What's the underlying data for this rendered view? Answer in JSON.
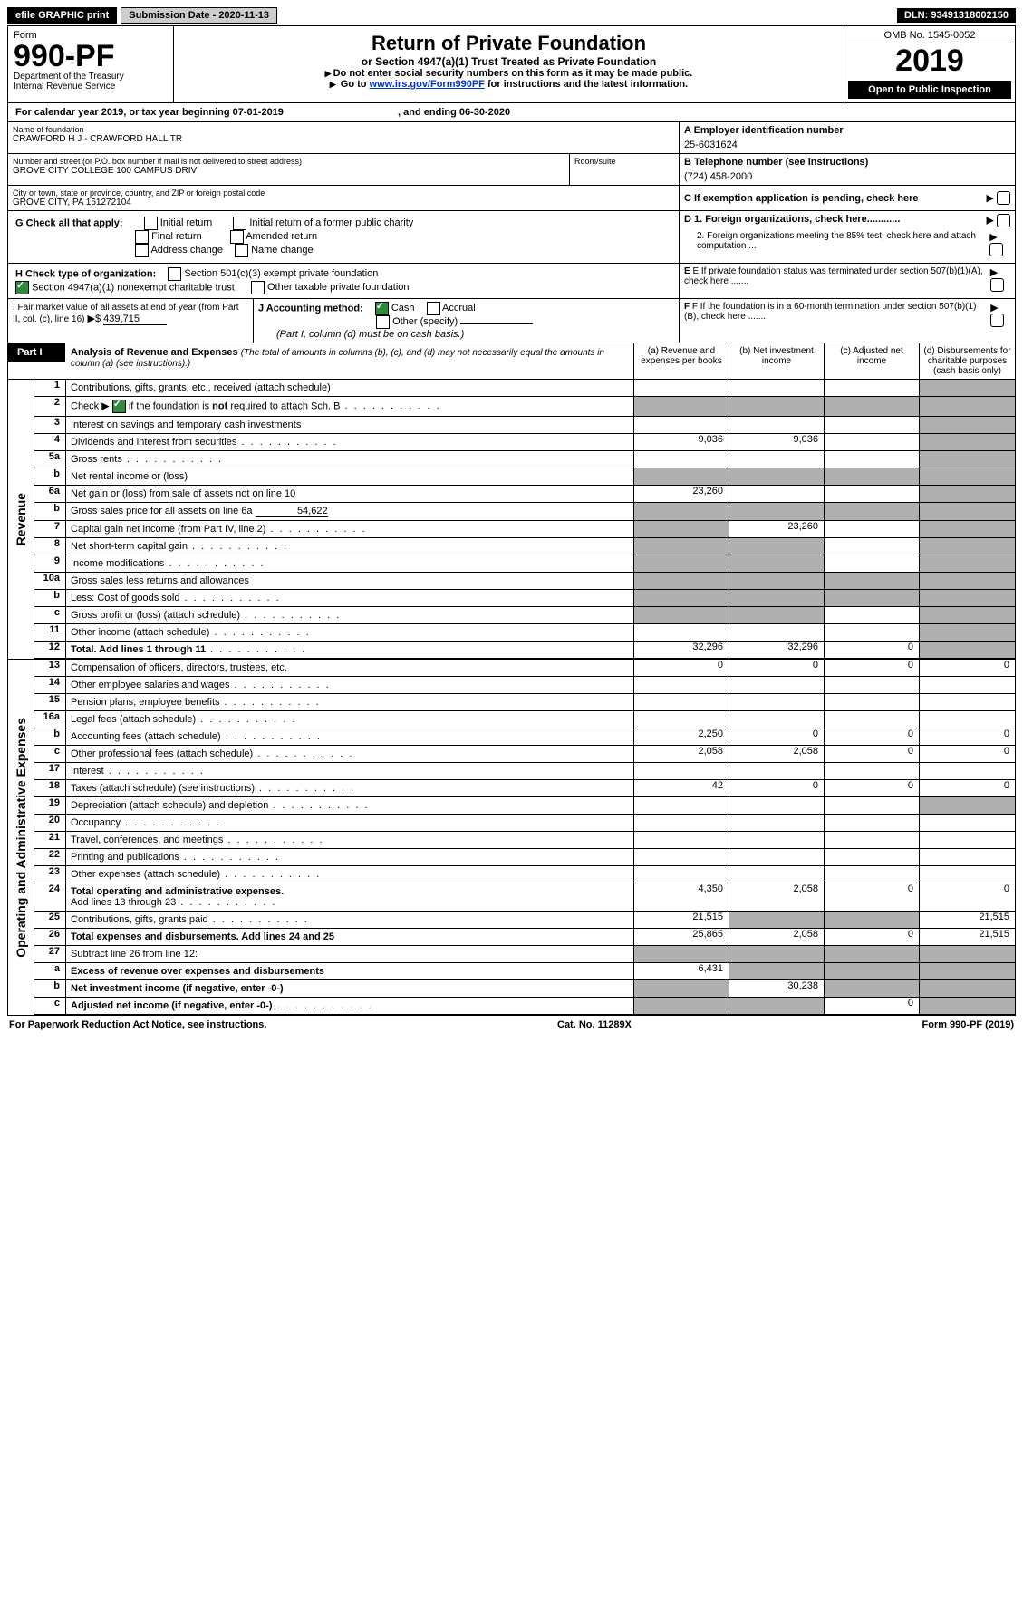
{
  "topbar": {
    "efile": "efile GRAPHIC print",
    "submission": "Submission Date - 2020-11-13",
    "dln": "DLN: 93491318002150"
  },
  "hdr": {
    "form": "Form",
    "num": "990-PF",
    "dept": "Department of the Treasury",
    "irs": "Internal Revenue Service",
    "title": "Return of Private Foundation",
    "sub": "or Section 4947(a)(1) Trust Treated as Private Foundation",
    "note1": "Do not enter social security numbers on this form as it may be made public.",
    "note2": "Go to ",
    "link": "www.irs.gov/Form990PF",
    "note3": " for instructions and the latest information.",
    "omb": "OMB No. 1545-0052",
    "year": "2019",
    "insp": "Open to Public Inspection"
  },
  "cal": {
    "text": "For calendar year 2019, or tax year beginning 07-01-2019",
    "end": ", and ending 06-30-2020"
  },
  "id": {
    "name_lbl": "Name of foundation",
    "name": "CRAWFORD H J - CRAWFORD HALL TR",
    "addr_lbl": "Number and street (or P.O. box number if mail is not delivered to street address)",
    "room_lbl": "Room/suite",
    "addr": "GROVE CITY COLLEGE 100 CAMPUS DRIV",
    "city_lbl": "City or town, state or province, country, and ZIP or foreign postal code",
    "city": "GROVE CITY, PA  161272104",
    "a_lbl": "A Employer identification number",
    "a": "25-6031624",
    "b_lbl": "B Telephone number (see instructions)",
    "b": "(724) 458-2000",
    "c": "C If exemption application is pending, check here"
  },
  "g": {
    "lbl": "G Check all that apply:",
    "a": "Initial return",
    "b": "Initial return of a former public charity",
    "c": "Final return",
    "d": "Amended return",
    "e": "Address change",
    "f": "Name change"
  },
  "d": {
    "d1": "D 1. Foreign organizations, check here............",
    "d2": "2. Foreign organizations meeting the 85% test, check here and attach computation ..."
  },
  "h": {
    "lbl": "H Check type of organization:",
    "a": "Section 501(c)(3) exempt private foundation",
    "b": "Section 4947(a)(1) nonexempt charitable trust",
    "c": "Other taxable private foundation"
  },
  "e": {
    "txt": "E If private foundation status was terminated under section 507(b)(1)(A), check here ......."
  },
  "i": {
    "lbl": "I Fair market value of all assets at end of year (from Part II, col. (c), line 16)",
    "amt": "439,715"
  },
  "j": {
    "lbl": "J Accounting method:",
    "a": "Cash",
    "b": "Accrual",
    "c": "Other (specify)",
    "note": "(Part I, column (d) must be on cash basis.)"
  },
  "f": {
    "txt": "F If the foundation is in a 60-month termination under section 507(b)(1)(B), check here ......."
  },
  "part1": {
    "tab": "Part I",
    "title": "Analysis of Revenue and Expenses",
    "paren": "(The total of amounts in columns (b), (c), and (d) may not necessarily equal the amounts in column (a) (see instructions).)",
    "ca": "(a)   Revenue and expenses per books",
    "cb": "(b)  Net investment income",
    "cc": "(c)  Adjusted net income",
    "cd": "(d)  Disbursements for charitable purposes (cash basis only)"
  },
  "sideA": "Revenue",
  "sideB": "Operating and Administrative Expenses",
  "rows": {
    "r1": {
      "n": "1",
      "t": "Contributions, gifts, grants, etc., received (attach schedule)"
    },
    "r2": {
      "n": "2",
      "t": "Check ▶",
      " t2": " if the foundation is not required to attach Sch. B"
    },
    "r3": {
      "n": "3",
      "t": "Interest on savings and temporary cash investments"
    },
    "r4": {
      "n": "4",
      "t": "Dividends and interest from securities",
      "a": "9,036",
      "b": "9,036"
    },
    "r5a": {
      "n": "5a",
      "t": "Gross rents"
    },
    "r5b": {
      "n": "b",
      "t": "Net rental income or (loss)"
    },
    "r6a": {
      "n": "6a",
      "t": "Net gain or (loss) from sale of assets not on line 10",
      "a": "23,260"
    },
    "r6b": {
      "n": "b",
      "t": "Gross sales price for all assets on line 6a",
      "v": "54,622"
    },
    "r7": {
      "n": "7",
      "t": "Capital gain net income (from Part IV, line 2)",
      "b": "23,260"
    },
    "r8": {
      "n": "8",
      "t": "Net short-term capital gain"
    },
    "r9": {
      "n": "9",
      "t": "Income modifications"
    },
    "r10a": {
      "n": "10a",
      "t": "Gross sales less returns and allowances"
    },
    "r10b": {
      "n": "b",
      "t": "Less: Cost of goods sold"
    },
    "r10c": {
      "n": "c",
      "t": "Gross profit or (loss) (attach schedule)"
    },
    "r11": {
      "n": "11",
      "t": "Other income (attach schedule)"
    },
    "r12": {
      "n": "12",
      "t": "Total. Add lines 1 through 11",
      "a": "32,296",
      "b": "32,296",
      "c": "0"
    },
    "r13": {
      "n": "13",
      "t": "Compensation of officers, directors, trustees, etc.",
      "a": "0",
      "b": "0",
      "c": "0",
      "d": "0"
    },
    "r14": {
      "n": "14",
      "t": "Other employee salaries and wages"
    },
    "r15": {
      "n": "15",
      "t": "Pension plans, employee benefits"
    },
    "r16a": {
      "n": "16a",
      "t": "Legal fees (attach schedule)"
    },
    "r16b": {
      "n": "b",
      "t": "Accounting fees (attach schedule)",
      "a": "2,250",
      "b": "0",
      "c": "0",
      "d": "0"
    },
    "r16c": {
      "n": "c",
      "t": "Other professional fees (attach schedule)",
      "a": "2,058",
      "b": "2,058",
      "c": "0",
      "d": "0"
    },
    "r17": {
      "n": "17",
      "t": "Interest"
    },
    "r18": {
      "n": "18",
      "t": "Taxes (attach schedule) (see instructions)",
      "a": "42",
      "b": "0",
      "c": "0",
      "d": "0"
    },
    "r19": {
      "n": "19",
      "t": "Depreciation (attach schedule) and depletion"
    },
    "r20": {
      "n": "20",
      "t": "Occupancy"
    },
    "r21": {
      "n": "21",
      "t": "Travel, conferences, and meetings"
    },
    "r22": {
      "n": "22",
      "t": "Printing and publications"
    },
    "r23": {
      "n": "23",
      "t": "Other expenses (attach schedule)"
    },
    "r24": {
      "n": "24",
      "t": "Total operating and administrative expenses.",
      "t2": "Add lines 13 through 23",
      "a": "4,350",
      "b": "2,058",
      "c": "0",
      "d": "0"
    },
    "r25": {
      "n": "25",
      "t": "Contributions, gifts, grants paid",
      "a": "21,515",
      "d": "21,515"
    },
    "r26": {
      "n": "26",
      "t": "Total expenses and disbursements. Add lines 24 and 25",
      "a": "25,865",
      "b": "2,058",
      "c": "0",
      "d": "21,515"
    },
    "r27": {
      "n": "27",
      "t": "Subtract line 26 from line 12:"
    },
    "r27a": {
      "n": "a",
      "t": "Excess of revenue over expenses and disbursements",
      "a": "6,431"
    },
    "r27b": {
      "n": "b",
      "t": "Net investment income (if negative, enter -0-)",
      "b": "30,238"
    },
    "r27c": {
      "n": "c",
      "t": "Adjusted net income (if negative, enter -0-)",
      "c": "0"
    }
  },
  "footer": {
    "a": "For Paperwork Reduction Act Notice, see instructions.",
    "b": "Cat. No. 11289X",
    "c": "Form 990-PF (2019)"
  }
}
